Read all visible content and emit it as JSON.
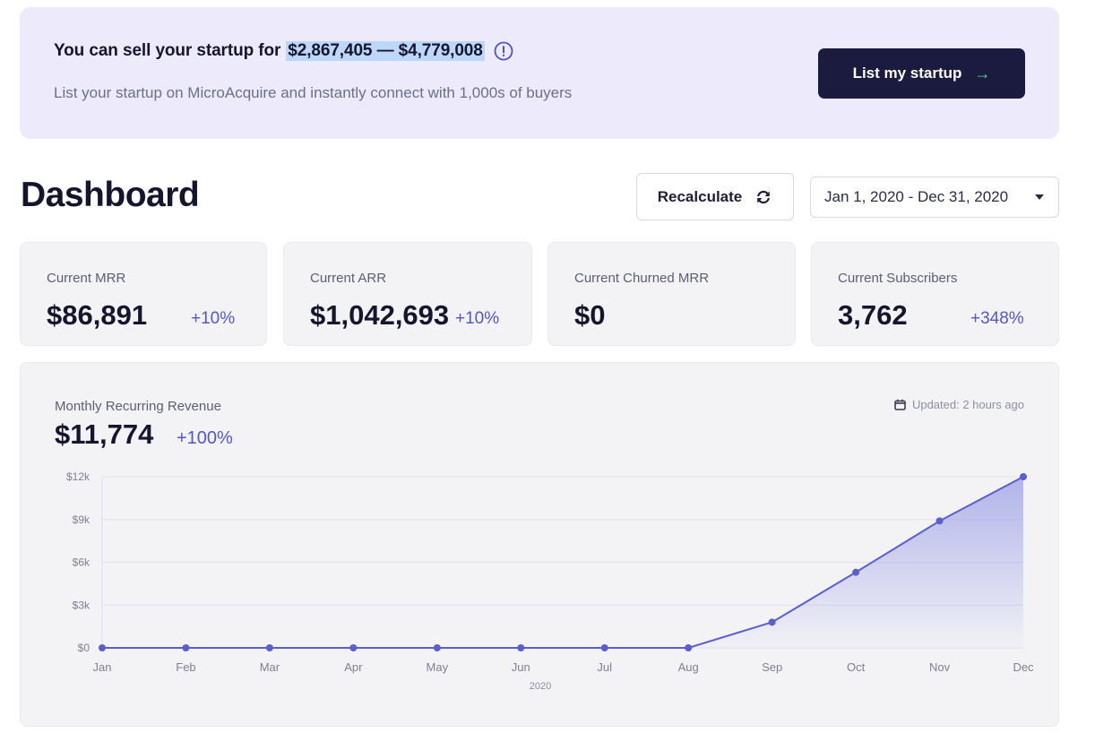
{
  "banner": {
    "headline_prefix": "You can sell your startup for",
    "headline_range": "$2,867,405 — $4,779,008",
    "subtitle": "List your startup on MicroAcquire and instantly connect with 1,000s of buyers",
    "cta_label": "List my startup",
    "cta_icon": "arrow-right-icon",
    "info_icon": "info-circle-icon"
  },
  "dashboard": {
    "title": "Dashboard",
    "recalculate_label": "Recalculate",
    "recalculate_icon": "refresh-icon",
    "date_range": "Jan 1, 2020 - Dec 31, 2020"
  },
  "stats": [
    {
      "label": "Current MRR",
      "value": "$86,891",
      "delta": "+10%"
    },
    {
      "label": "Current ARR",
      "value": "$1,042,693",
      "delta": "+10%"
    },
    {
      "label": "Current Churned MRR",
      "value": "$0",
      "delta": ""
    },
    {
      "label": "Current Subscribers",
      "value": "3,762",
      "delta": "+348%"
    }
  ],
  "mrr_panel": {
    "label": "Monthly Recurring Revenue",
    "value": "$11,774",
    "delta": "+100%",
    "updated": "Updated: 2 hours ago"
  },
  "colors": {
    "accent": "#5a5fd0",
    "banner_bg": "#eceafb",
    "cta_bg": "#1b1b40",
    "highlight": "#bcd7f8"
  },
  "chart_data": {
    "type": "area",
    "title": "",
    "xlabel": "2020",
    "ylabel": "",
    "categories": [
      "Jan",
      "Feb",
      "Mar",
      "Apr",
      "May",
      "Jun",
      "Jul",
      "Aug",
      "Sep",
      "Oct",
      "Nov",
      "Dec"
    ],
    "series": [
      {
        "values": [
          0,
          0,
          0,
          0,
          0,
          0,
          0,
          0,
          1800,
          5300,
          8900,
          12000
        ]
      }
    ],
    "y_ticks": [
      "$0",
      "$3k",
      "$6k",
      "$9k",
      "$12k"
    ],
    "y_tick_values": [
      0,
      3000,
      6000,
      9000,
      12000
    ],
    "ylim": [
      0,
      12000
    ],
    "grid": true,
    "legend": "none"
  }
}
